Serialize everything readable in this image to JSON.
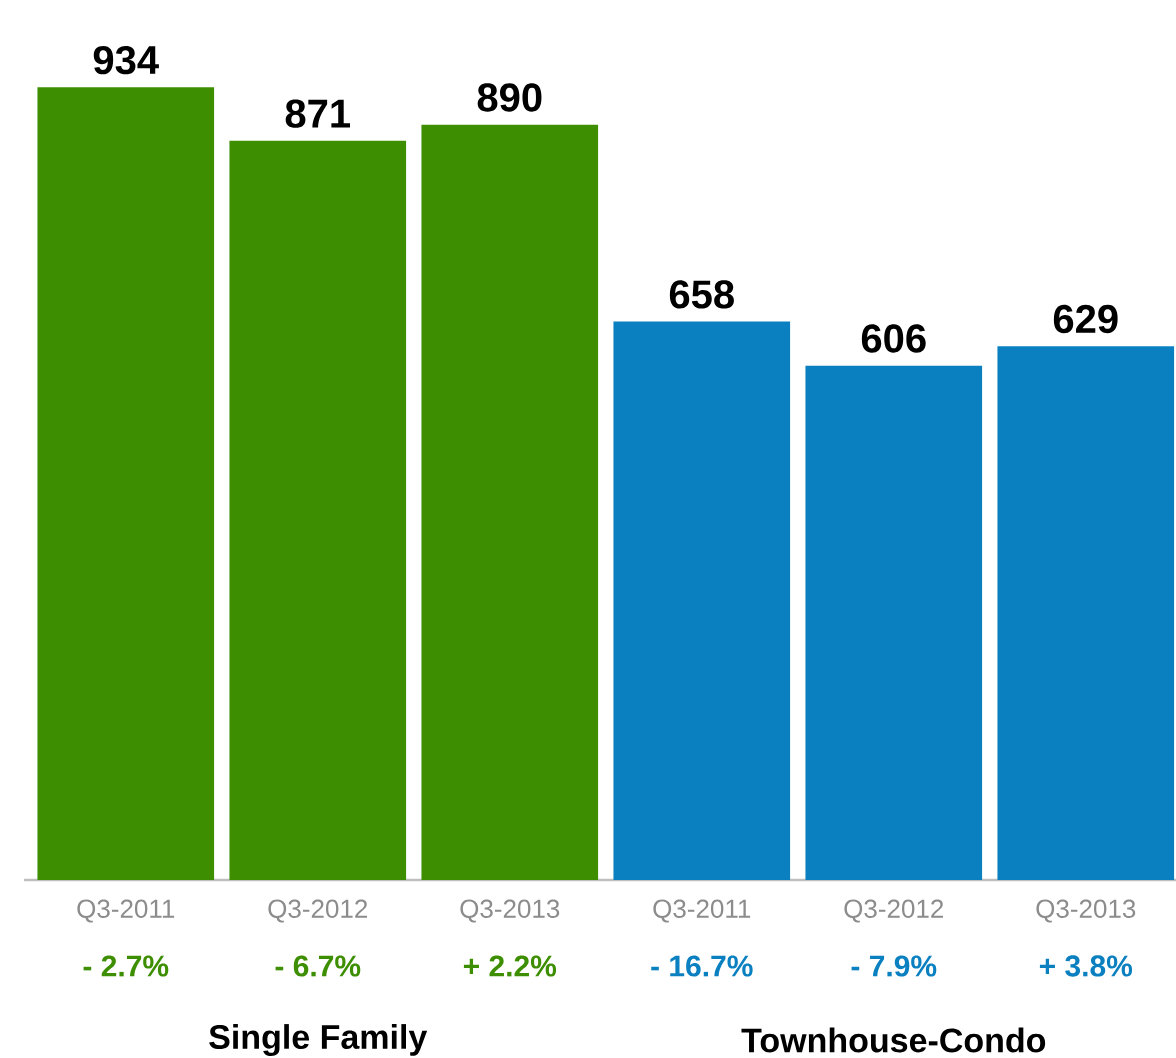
{
  "chart_data": {
    "type": "bar",
    "categories": [
      "Q3-2011",
      "Q3-2012",
      "Q3-2013",
      "Q3-2011",
      "Q3-2012",
      "Q3-2013"
    ],
    "series": [
      {
        "color": "#3d8e00",
        "values": [
          934,
          871,
          890,
          null,
          null,
          null
        ]
      },
      {
        "color": "#0b80c0",
        "values": [
          null,
          null,
          null,
          658,
          606,
          629
        ]
      }
    ],
    "annotations": [
      "- 2.7%",
      "- 6.7%",
      "+ 2.2%",
      "- 16.7%",
      "- 7.9%",
      "+ 3.8%",
      "Single Family",
      "Townhouse-Condo"
    ],
    "data_labels": true
  }
}
